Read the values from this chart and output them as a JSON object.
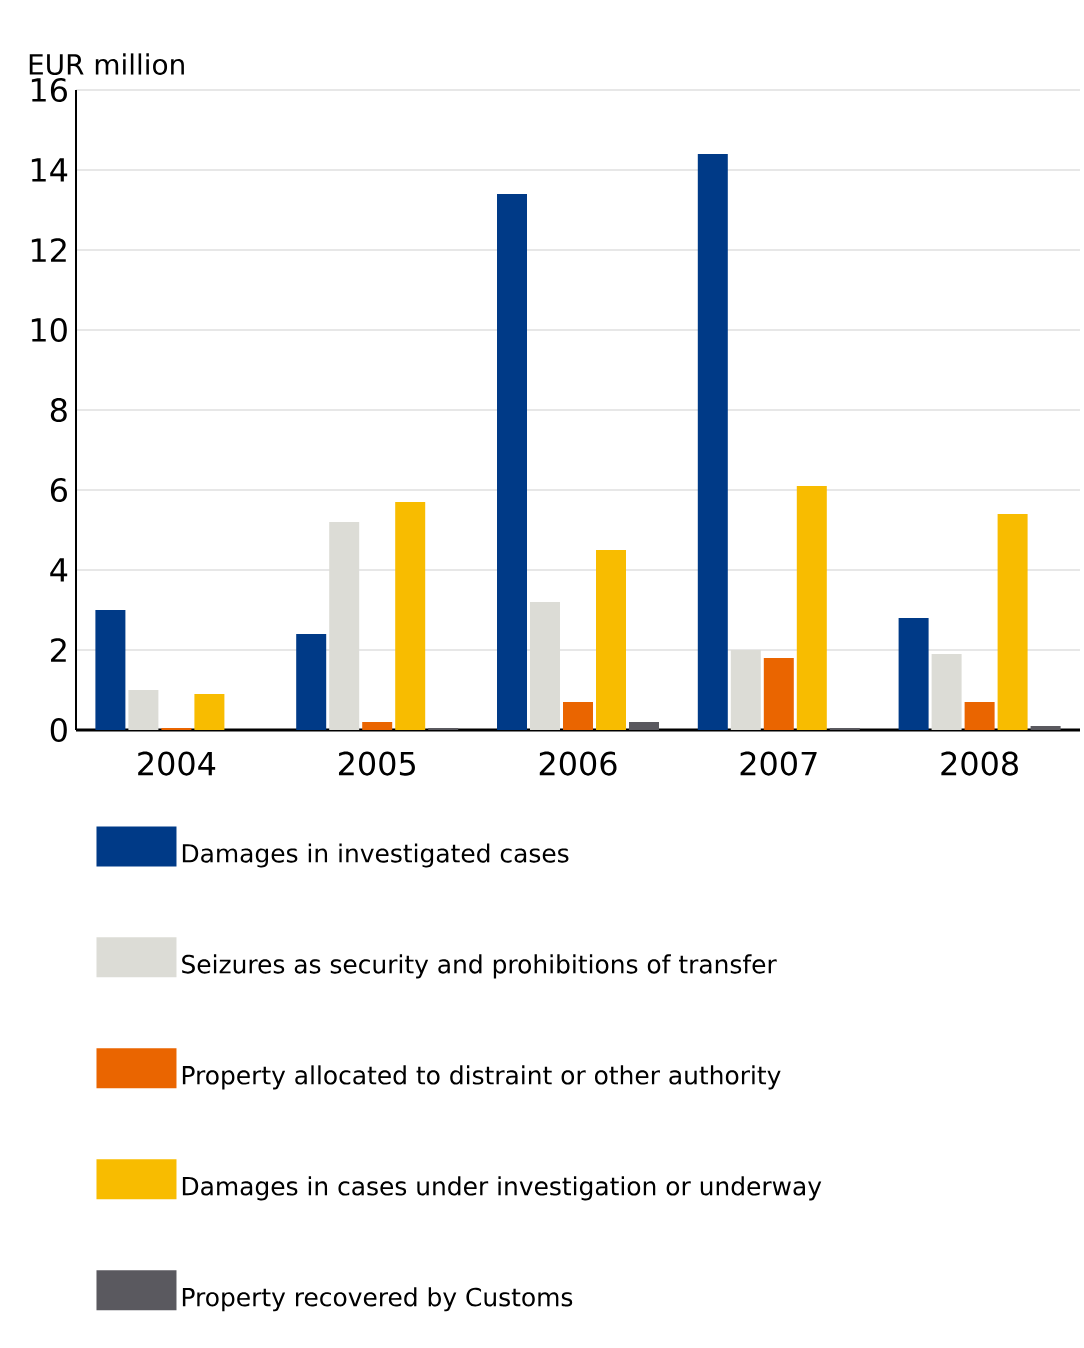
{
  "chart_data": {
    "type": "bar",
    "ylabel": "EUR million",
    "categories": [
      "2004",
      "2005",
      "2006",
      "2007",
      "2008"
    ],
    "series": [
      {
        "name": "Damages in investigated cases",
        "color": "#003a87",
        "values": [
          3.0,
          2.4,
          13.4,
          14.4,
          2.8
        ]
      },
      {
        "name": "Seizures as security and prohibitions of transfer",
        "color": "#dcdcd6",
        "values": [
          1.0,
          5.2,
          3.2,
          2.0,
          1.9
        ]
      },
      {
        "name": "Property allocated to distraint or other authority",
        "color": "#ea6500",
        "values": [
          0.05,
          0.2,
          0.7,
          1.8,
          0.7
        ]
      },
      {
        "name": "Damages in cases under investigation or underway",
        "color": "#f8bc00",
        "values": [
          0.9,
          5.7,
          4.5,
          6.1,
          5.4
        ]
      },
      {
        "name": "Property recovered by Customs",
        "color": "#5a595f",
        "values": [
          0,
          0.05,
          0.2,
          0.05,
          0.1
        ]
      }
    ],
    "ylim": [
      0,
      16
    ],
    "yticks": [
      0,
      2,
      4,
      6,
      8,
      10,
      12,
      14,
      16
    ],
    "grid": "y",
    "legend": "bottom"
  }
}
